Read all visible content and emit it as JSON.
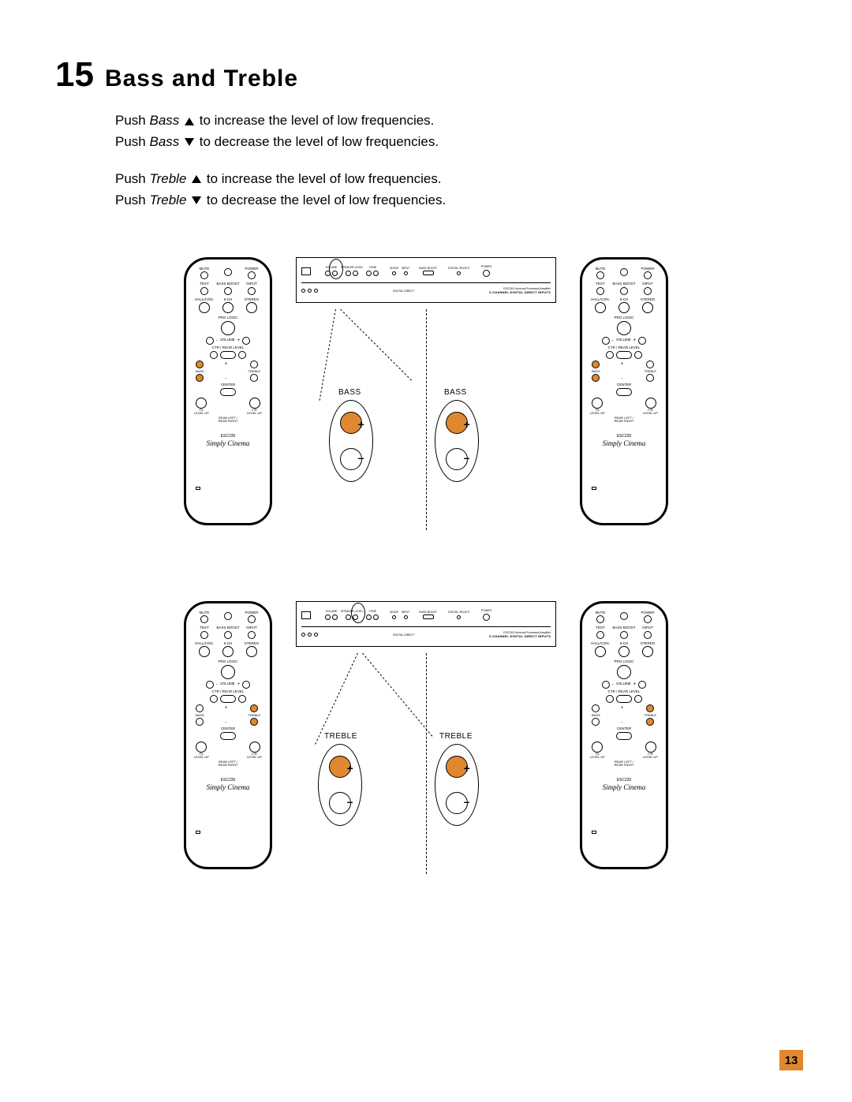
{
  "section": {
    "number": "15",
    "title": "Bass and Treble"
  },
  "instructions": [
    {
      "prefix": "Push ",
      "control": "Bass",
      "dir": "up",
      "suffix": " to increase the level of low frequencies."
    },
    {
      "prefix": "Push ",
      "control": "Bass",
      "dir": "down",
      "suffix": " to decrease the level of low frequencies."
    }
  ],
  "instructions2": [
    {
      "prefix": "Push ",
      "control": "Treble",
      "dir": "up",
      "suffix": " to increase the level of low frequencies."
    },
    {
      "prefix": "Push ",
      "control": "Treble",
      "dir": "down",
      "suffix": " to decrease the level of low frequencies."
    }
  ],
  "remote": {
    "row1": [
      "MUTE",
      "",
      "POWER"
    ],
    "row2": [
      "TEST",
      "BASS\nBOOST",
      "INPUT"
    ],
    "row3": [
      "HALL/CON.",
      "6-CH",
      "STEREO"
    ],
    "prologic": "PRO LOGIC",
    "volume": "VOLUME",
    "ctr_rear": "CTR / REAR LEVEL",
    "bass": "BASS",
    "treble": "TREBLE",
    "center": "CENTER",
    "fl": "F/L\nLEVEL UP",
    "fr": "F/R\nLEVEL UP",
    "rear": "REAR LEFT /\nREAR RIGHT",
    "model": "ESC230",
    "brand": "Simply Cinema"
  },
  "amp": {
    "volume": "VOLUME",
    "speaker_level": "SPEAKER\nLEVEL",
    "tone": "TONE",
    "bass": "BASS",
    "treble": "TREBLE",
    "mode": "MODE",
    "input": "INPUT",
    "digital_select": "DIGITAL\nSELECT",
    "bass_boost": "BASS\nBOOST",
    "power": "POWER",
    "title": "6-CHANNEL DIGITAL DIRECT INPUTS",
    "model": "ESC230  Surround Processor/Amplifier"
  },
  "callouts": {
    "bass": "BASS",
    "treble": "TREBLE",
    "plus": "+",
    "minus": "–"
  },
  "colors": {
    "highlight": "#e08830",
    "stroke": "#000000",
    "bg": "#ffffff"
  },
  "page_number": "13"
}
